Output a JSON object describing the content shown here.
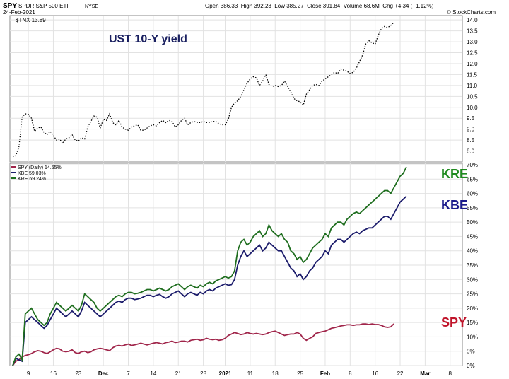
{
  "header": {
    "symbol": "SPY",
    "name": "SPDR S&P 500 ETF",
    "exchange": "NYSE",
    "date": "24-Feb-2021",
    "ohlc": "Open 386.33  High 392.23  Low 385.27  Close 391.84  Volume 68.6M  Chg +4.34 (+1.12%)",
    "watermark": "© StockCharts.com"
  },
  "chart_data": [
    {
      "type": "line",
      "legend": "$TNX 13.89",
      "annotation": "UST 10-Y yield",
      "ylim": [
        7.5,
        14.2
      ],
      "yticks": [
        "8.0",
        "8.5",
        "9.0",
        "9.5",
        "10.0",
        "10.5",
        "11.0",
        "11.5",
        "12.0",
        "12.5",
        "13.0",
        "13.5",
        "14.0"
      ],
      "series": [
        {
          "name": "$TNX",
          "color": "#000000",
          "style": "dotted",
          "values": [
            7.75,
            7.78,
            8.2,
            9.55,
            9.7,
            9.68,
            9.5,
            8.9,
            9.05,
            9.1,
            8.85,
            8.75,
            8.9,
            8.7,
            8.5,
            8.55,
            8.35,
            8.55,
            8.6,
            8.75,
            8.5,
            8.45,
            8.6,
            8.55,
            9.1,
            9.35,
            9.6,
            9.55,
            9.05,
            9.45,
            9.4,
            9.7,
            9.3,
            9.2,
            9.4,
            9.1,
            9.0,
            8.95,
            9.1,
            9.15,
            9.2,
            8.95,
            8.95,
            9.05,
            9.15,
            9.2,
            9.15,
            9.3,
            9.4,
            9.3,
            9.4,
            9.35,
            9.1,
            9.2,
            9.4,
            9.5,
            9.2,
            9.3,
            9.35,
            9.3,
            9.3,
            9.35,
            9.3,
            9.3,
            9.35,
            9.35,
            9.25,
            9.2,
            9.2,
            9.45,
            10.0,
            10.2,
            10.3,
            10.5,
            10.8,
            11.1,
            11.3,
            11.4,
            11.35,
            11.0,
            11.2,
            11.5,
            11.05,
            10.95,
            11.0,
            10.95,
            11.0,
            11.2,
            10.95,
            10.7,
            10.4,
            10.3,
            10.25,
            10.1,
            10.6,
            10.8,
            11.0,
            11.05,
            11.0,
            11.2,
            11.3,
            11.4,
            11.5,
            11.6,
            11.55,
            11.75,
            11.7,
            11.65,
            11.55,
            11.6,
            11.8,
            12.1,
            12.4,
            12.9,
            13.05,
            12.95,
            12.9,
            13.3,
            13.6,
            13.7,
            13.65,
            13.75,
            13.89
          ]
        }
      ]
    },
    {
      "type": "line",
      "ylim": [
        0,
        70
      ],
      "yticks": [
        "0%",
        "5%",
        "10%",
        "15%",
        "20%",
        "25%",
        "30%",
        "35%",
        "40%",
        "45%",
        "50%",
        "55%",
        "60%",
        "65%",
        "70%"
      ],
      "xticks": [
        {
          "label": "9",
          "i": 5
        },
        {
          "label": "16",
          "i": 13
        },
        {
          "label": "23",
          "i": 21
        },
        {
          "label": "Dec",
          "i": 29
        },
        {
          "label": "7",
          "i": 37
        },
        {
          "label": "14",
          "i": 45
        },
        {
          "label": "21",
          "i": 53
        },
        {
          "label": "28",
          "i": 61
        },
        {
          "label": "2021",
          "i": 68
        },
        {
          "label": "11",
          "i": 76
        },
        {
          "label": "18",
          "i": 84
        },
        {
          "label": "25",
          "i": 92
        },
        {
          "label": "Feb",
          "i": 100
        },
        {
          "label": "8",
          "i": 108
        },
        {
          "label": "16",
          "i": 116
        },
        {
          "label": "22",
          "i": 124
        },
        {
          "label": "Mar",
          "i": 132
        },
        {
          "label": "8",
          "i": 140
        }
      ],
      "x_count": 144,
      "labels": {
        "kre": "KRE",
        "kbe": "KBE",
        "spy": "SPY"
      },
      "legend": [
        "SPY (Daily) 14.55%",
        "KBE 59.03%",
        "KRE 69.24%"
      ],
      "series": [
        {
          "name": "SPY",
          "color": "#a0254a",
          "values": [
            0,
            1.5,
            2,
            3,
            3.5,
            3.8,
            4.2,
            4.8,
            5.2,
            5,
            4.5,
            4.2,
            4.8,
            5.5,
            6,
            5.8,
            5,
            4.8,
            5,
            5.5,
            4.5,
            4.2,
            4.8,
            5,
            4.5,
            4.8,
            5.5,
            5.8,
            6,
            5.8,
            5.5,
            5.2,
            6.2,
            6.8,
            7,
            6.8,
            7.2,
            7.5,
            7,
            7.2,
            7.5,
            7.8,
            7.5,
            7.2,
            7.5,
            7.8,
            8,
            7.8,
            7.5,
            8,
            8.2,
            8.5,
            8,
            8.2,
            8.5,
            8.5,
            8.2,
            8.8,
            9,
            9.2,
            8.8,
            9,
            9.5,
            9.2,
            9,
            9.2,
            8.8,
            9,
            9.5,
            10.5,
            11,
            11.5,
            11.2,
            10.8,
            11,
            11.5,
            11.2,
            11,
            11.2,
            11,
            10.8,
            11,
            11.5,
            11.8,
            12,
            11.5,
            11,
            10.5,
            10.8,
            11,
            11,
            11.5,
            11,
            9.5,
            8.8,
            9.5,
            10,
            11.2,
            11.5,
            11.8,
            12,
            12.5,
            13,
            13.2,
            13.5,
            13.8,
            14,
            14.2,
            14.2,
            14,
            14.2,
            14.2,
            14.5,
            14.5,
            14.3,
            14.5,
            14.3,
            14.3,
            14,
            13.5,
            13.3,
            13.5,
            14.55
          ]
        },
        {
          "name": "KBE",
          "color": "#1b1b6b",
          "values": [
            0,
            2.5,
            2,
            1.5,
            15,
            16,
            17,
            16,
            15,
            14,
            13,
            14,
            16,
            18,
            20,
            19,
            18,
            17,
            18,
            19,
            18,
            17,
            19,
            22,
            21,
            20,
            19,
            18,
            17,
            18,
            19,
            20,
            21,
            22,
            22.5,
            22,
            23,
            23.5,
            23.5,
            23,
            23.2,
            23.5,
            24,
            24.5,
            24.5,
            24,
            24.5,
            24.8,
            24,
            23.5,
            24,
            25,
            25.5,
            26,
            25,
            24,
            25,
            25.5,
            25,
            24.5,
            25.5,
            25,
            26,
            26.5,
            26,
            27,
            27.5,
            28,
            28.5,
            28,
            28.2,
            30,
            35,
            38,
            40,
            38,
            39,
            40,
            41,
            42,
            40,
            41,
            43,
            42,
            41,
            40,
            40,
            38,
            36,
            34,
            33,
            31,
            32,
            30,
            31,
            33,
            34,
            36,
            37,
            38,
            40,
            39,
            42,
            43,
            44,
            44,
            43,
            44,
            45,
            46,
            46.5,
            46,
            47,
            47.5,
            48,
            48,
            49,
            50,
            51,
            52,
            52,
            51,
            53,
            55,
            57,
            58,
            59.03
          ]
        },
        {
          "name": "KRE",
          "color": "#1f6e1f",
          "values": [
            0,
            3,
            4,
            2,
            18,
            19,
            20,
            18,
            16,
            15,
            14,
            15,
            18,
            20,
            22,
            21,
            20,
            19,
            20,
            21,
            20,
            19,
            21,
            25,
            24,
            23,
            22,
            20,
            19,
            20,
            21,
            22,
            23,
            24,
            24.5,
            24,
            25,
            25.5,
            25.5,
            25,
            25.2,
            25.5,
            26,
            26.5,
            26.5,
            26,
            26.5,
            27,
            26.5,
            26,
            26.5,
            27.5,
            28,
            28.5,
            27.5,
            26.5,
            27.5,
            28,
            27.5,
            27,
            28,
            27.5,
            28.5,
            29,
            28.5,
            29.5,
            30,
            30.5,
            31,
            30.5,
            31,
            33,
            40,
            43,
            44,
            42,
            43,
            45,
            46,
            47,
            45,
            46,
            49,
            47,
            46,
            45,
            46,
            44,
            43,
            40,
            39,
            37,
            38,
            36,
            37,
            39,
            41,
            42,
            43,
            44,
            46,
            45,
            48,
            49,
            50,
            50,
            49,
            51,
            52,
            53,
            53.5,
            53,
            54,
            55,
            56,
            57,
            58,
            59,
            60,
            61,
            61,
            60,
            62,
            64,
            66,
            67,
            69.24
          ]
        }
      ]
    }
  ]
}
